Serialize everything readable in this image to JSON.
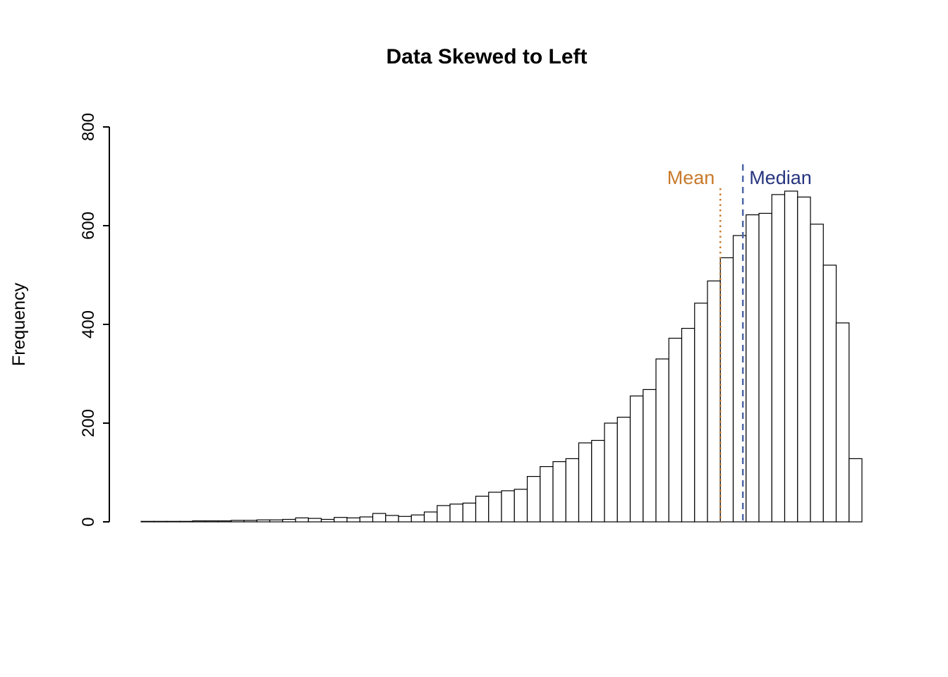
{
  "chart_data": {
    "type": "bar",
    "subtype": "histogram",
    "title": "Data Skewed to Left",
    "xlabel": "",
    "ylabel": "Frequency",
    "ylim": [
      0,
      800
    ],
    "yticks": [
      0,
      200,
      400,
      600,
      800
    ],
    "x_axis_labels_visible": false,
    "grid": false,
    "bar_fill": "#ffffff",
    "bar_stroke": "#000000",
    "values": [
      1,
      1,
      1,
      1,
      2,
      2,
      2,
      3,
      3,
      4,
      4,
      5,
      8,
      7,
      5,
      9,
      8,
      10,
      17,
      13,
      11,
      14,
      20,
      33,
      36,
      38,
      52,
      60,
      63,
      66,
      92,
      112,
      122,
      128,
      160,
      165,
      200,
      212,
      255,
      268,
      330,
      372,
      392,
      443,
      488,
      535,
      580,
      622,
      625,
      663,
      670,
      658,
      603,
      520,
      403,
      128
    ],
    "mean_line": {
      "label": "Mean",
      "bin_position": 45.0,
      "line_color": "#C87A2C",
      "label_color": "#C87A2C",
      "style": "dotted"
    },
    "median_line": {
      "label": "Median",
      "bin_position": 46.75,
      "line_color": "#4C66A8",
      "label_color": "#27357E",
      "style": "dashed"
    }
  }
}
